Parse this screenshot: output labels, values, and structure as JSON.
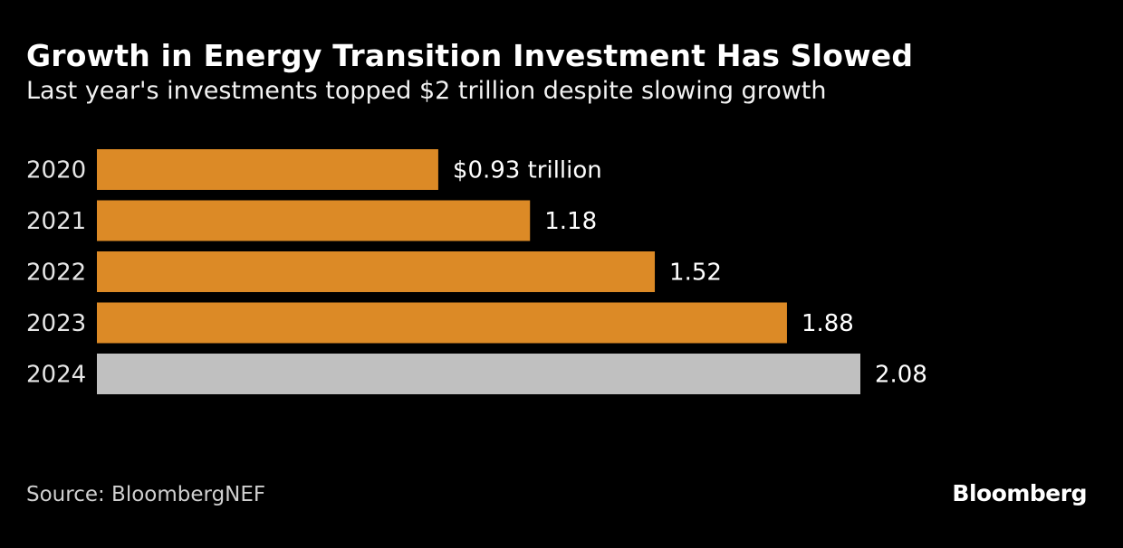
{
  "chart_data": {
    "type": "bar",
    "orientation": "horizontal",
    "title": "Growth in Energy Transition Investment Has Slowed",
    "subtitle": "Last year's investments topped $2 trillion despite slowing growth",
    "categories": [
      "2020",
      "2021",
      "2022",
      "2023",
      "2024"
    ],
    "values": [
      0.93,
      1.18,
      1.52,
      1.88,
      2.08
    ],
    "data_labels": [
      "$0.93 trillion",
      "1.18",
      "1.52",
      "1.88",
      "2.08"
    ],
    "colors": [
      "#dc8a26",
      "#dc8a26",
      "#dc8a26",
      "#dc8a26",
      "#c0c0c0"
    ],
    "units": "trillion USD",
    "xlim": [
      0,
      2.08
    ],
    "xlabel": "",
    "ylabel": "",
    "grid": false,
    "legend": "none"
  },
  "footer": {
    "source": "Source: BloombergNEF",
    "logo": "Bloomberg"
  }
}
